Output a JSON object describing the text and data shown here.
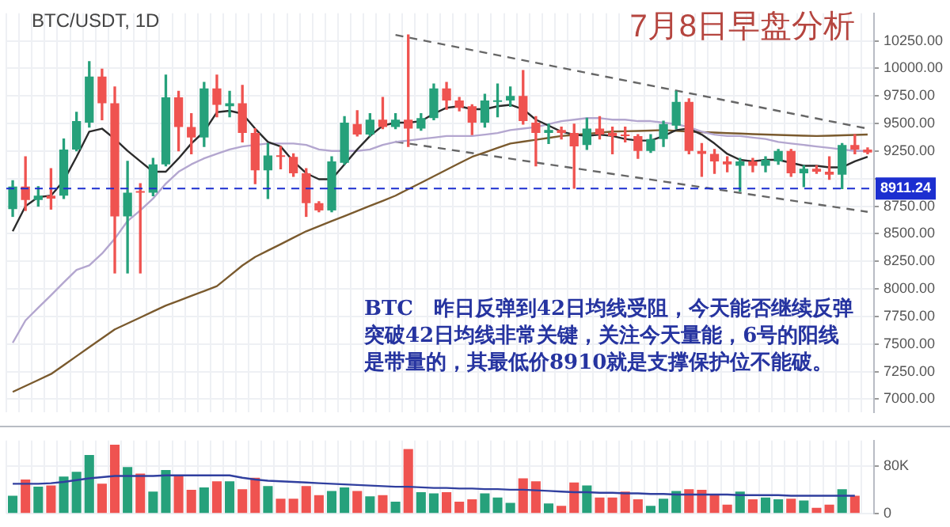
{
  "chart_data": [
    {
      "type": "candlestick",
      "title": "BTC/USDT, 1D",
      "annotations": [
        "7月8日早盘分析",
        "BTC　昨日反弹到42日均线受阻，今天能否继续反弹",
        "突破42日均线非常关键，关注今天量能，6号的阳线",
        "是带量的，其最低价8910就是支撑保护位不能破。"
      ],
      "categories": [
        null,
        null,
        null,
        null,
        null,
        null,
        null,
        null,
        null,
        null,
        null,
        null,
        null,
        null,
        null,
        null,
        null,
        null,
        null,
        null,
        null,
        null,
        null,
        null,
        null,
        null,
        null,
        null,
        null,
        null,
        null,
        null,
        null,
        null,
        null,
        null,
        null,
        null,
        null,
        null,
        null,
        null,
        null,
        null,
        null,
        null,
        null,
        null,
        null,
        null,
        null,
        null,
        null,
        null,
        null,
        null,
        null,
        null,
        null,
        null,
        null,
        null,
        null,
        null,
        null,
        null,
        null,
        null
      ],
      "ohlc": [
        [
          8724,
          8982,
          8658,
          8928
        ],
        [
          8928,
          9198,
          8712,
          8806
        ],
        [
          8806,
          8928,
          8751,
          8846
        ],
        [
          8846,
          9090,
          8724,
          8820
        ],
        [
          8846,
          9360,
          8820,
          9265
        ],
        [
          9265,
          9603,
          9252,
          9522
        ],
        [
          9508,
          10061,
          9468,
          9926
        ],
        [
          9926,
          9994,
          9535,
          9684
        ],
        [
          9684,
          9832,
          8145,
          8658
        ],
        [
          8658,
          9157,
          8145,
          8873
        ],
        [
          8886,
          8955,
          8145,
          8873
        ],
        [
          8873,
          9184,
          8846,
          9130
        ],
        [
          9130,
          9940,
          9117,
          9737
        ],
        [
          9737,
          9792,
          9252,
          9468
        ],
        [
          9468,
          9589,
          9225,
          9373
        ],
        [
          9373,
          9873,
          9292,
          9818
        ],
        [
          9818,
          9940,
          9562,
          9670
        ],
        [
          9657,
          9792,
          9562,
          9684
        ],
        [
          9684,
          9846,
          9333,
          9414
        ],
        [
          9414,
          9454,
          8955,
          9076
        ],
        [
          9076,
          9319,
          8820,
          9211
        ],
        [
          9211,
          9292,
          9090,
          9198
        ],
        [
          9198,
          9225,
          9022,
          9049
        ],
        [
          9049,
          9090,
          8658,
          8778
        ],
        [
          8778,
          8792,
          8700,
          8712
        ],
        [
          8712,
          9198,
          8700,
          9157
        ],
        [
          9144,
          9562,
          9130,
          9508
        ],
        [
          9495,
          9616,
          9387,
          9400
        ],
        [
          9400,
          9589,
          9387,
          9535
        ],
        [
          9535,
          9737,
          9454,
          9468
        ],
        [
          9468,
          9589,
          9454,
          9535
        ],
        [
          9535,
          10304,
          9292,
          9454
        ],
        [
          9454,
          9589,
          9440,
          9549
        ],
        [
          9549,
          9859,
          9535,
          9818
        ],
        [
          9818,
          9873,
          9630,
          9710
        ],
        [
          9710,
          9737,
          9616,
          9643
        ],
        [
          9657,
          9670,
          9400,
          9508
        ],
        [
          9508,
          9765,
          9468,
          9710
        ],
        [
          9697,
          9859,
          9562,
          9710
        ],
        [
          9710,
          9832,
          9657,
          9751
        ],
        [
          9751,
          9980,
          9495,
          9522
        ],
        [
          9508,
          9562,
          9117,
          9414
        ],
        [
          9414,
          9495,
          9319,
          9441
        ],
        [
          9441,
          9468,
          9360,
          9414
        ],
        [
          9414,
          9495,
          8914,
          9292
        ],
        [
          9306,
          9549,
          9265,
          9454
        ],
        [
          9454,
          9562,
          9360,
          9400
        ],
        [
          9414,
          9468,
          9225,
          9387
        ],
        [
          9400,
          9468,
          9333,
          9387
        ],
        [
          9387,
          9400,
          9184,
          9252
        ],
        [
          9252,
          9400,
          9238,
          9360
        ],
        [
          9360,
          9522,
          9292,
          9495
        ],
        [
          9481,
          9792,
          9454,
          9697
        ],
        [
          9697,
          9724,
          9225,
          9252
        ],
        [
          9252,
          9319,
          9022,
          9225
        ],
        [
          9225,
          9265,
          9049,
          9157
        ],
        [
          9157,
          9198,
          9063,
          9130
        ],
        [
          9117,
          9184,
          8886,
          9157
        ],
        [
          9157,
          9184,
          9063,
          9117
        ],
        [
          9117,
          9198,
          9063,
          9171
        ],
        [
          9157,
          9265,
          9130,
          9252
        ],
        [
          9252,
          9265,
          9022,
          9049
        ],
        [
          9049,
          9117,
          8928,
          9090
        ],
        [
          9090,
          9117,
          9049,
          9063
        ],
        [
          9063,
          9198,
          8995,
          9036
        ],
        [
          9036,
          9319,
          8910,
          9306
        ],
        [
          9306,
          9400,
          9225,
          9265
        ],
        [
          9265,
          9279,
          9225,
          9238
        ]
      ],
      "colors": [
        "#26a17b",
        "#ef5350",
        "#26a17b",
        "#ef5350",
        "#26a17b",
        "#26a17b",
        "#26a17b",
        "#ef5350",
        "#ef5350",
        "#26a17b",
        "#ef5350",
        "#26a17b",
        "#26a17b",
        "#ef5350",
        "#ef5350",
        "#26a17b",
        "#ef5350",
        "#26a17b",
        "#ef5350",
        "#ef5350",
        "#26a17b",
        "#ef5350",
        "#ef5350",
        "#ef5350",
        "#ef5350",
        "#26a17b",
        "#26a17b",
        "#ef5350",
        "#26a17b",
        "#ef5350",
        "#26a17b",
        "#ef5350",
        "#26a17b",
        "#26a17b",
        "#ef5350",
        "#ef5350",
        "#ef5350",
        "#26a17b",
        "#26a17b",
        "#26a17b",
        "#ef5350",
        "#ef5350",
        "#26a17b",
        "#ef5350",
        "#ef5350",
        "#26a17b",
        "#ef5350",
        "#ef5350",
        "#ef5350",
        "#ef5350",
        "#26a17b",
        "#26a17b",
        "#26a17b",
        "#ef5350",
        "#ef5350",
        "#ef5350",
        "#ef5350",
        "#26a17b",
        "#ef5350",
        "#26a17b",
        "#26a17b",
        "#ef5350",
        "#26a17b",
        "#ef5350",
        "#ef5350",
        "#26a17b",
        "#ef5350",
        "#ef5350"
      ],
      "series": [
        {
          "type": "line",
          "color": "#2b2b2b",
          "values": [
            8523,
            8751,
            8833,
            8846,
            8982,
            9198,
            9427,
            9454,
            9360,
            9252,
            9157,
            9063,
            9063,
            9184,
            9319,
            9427,
            9603,
            9616,
            9589,
            9454,
            9333,
            9292,
            9157,
            9049,
            8995,
            8995,
            9130,
            9265,
            9387,
            9481,
            9508,
            9508,
            9522,
            9589,
            9643,
            9657,
            9630,
            9630,
            9657,
            9670,
            9630,
            9535,
            9481,
            9427,
            9400,
            9387,
            9400,
            9387,
            9360,
            9346,
            9346,
            9387,
            9441,
            9454,
            9400,
            9319,
            9225,
            9171,
            9157,
            9171,
            9171,
            9144,
            9117,
            9117,
            9103,
            9103,
            9157,
            9198
          ]
        },
        {
          "type": "line",
          "color": "#b3a6cf",
          "values": [
            7511,
            7714,
            7830,
            7943,
            8060,
            8172,
            8213,
            8321,
            8456,
            8616,
            8712,
            8820,
            8955,
            9063,
            9130,
            9184,
            9225,
            9265,
            9292,
            9306,
            9319,
            9319,
            9319,
            9306,
            9265,
            9252,
            9252,
            9252,
            9265,
            9306,
            9333,
            9346,
            9360,
            9373,
            9387,
            9387,
            9387,
            9400,
            9414,
            9441,
            9454,
            9468,
            9495,
            9522,
            9535,
            9549,
            9549,
            9535,
            9535,
            9522,
            9522,
            9508,
            9495,
            9468,
            9427,
            9400,
            9387,
            9387,
            9373,
            9360,
            9333,
            9319,
            9306,
            9292,
            9279,
            9265,
            9252,
            9252
          ]
        },
        {
          "type": "line",
          "color": "#7a5a2e",
          "values": [
            7066,
            7120,
            7174,
            7228,
            7309,
            7390,
            7471,
            7552,
            7633,
            7687,
            7741,
            7795,
            7849,
            7893,
            7937,
            7981,
            8025,
            8119,
            8213,
            8290,
            8348,
            8406,
            8465,
            8523,
            8569,
            8615,
            8661,
            8707,
            8753,
            8799,
            8846,
            8905,
            8963,
            9022,
            9081,
            9140,
            9198,
            9238,
            9279,
            9319,
            9336,
            9353,
            9370,
            9387,
            9397,
            9407,
            9417,
            9427,
            9430,
            9433,
            9436,
            9441,
            9434,
            9427,
            9422,
            9418,
            9413,
            9409,
            9404,
            9400,
            9397,
            9393,
            9390,
            9387,
            9390,
            9393,
            9397,
            9400
          ]
        },
        {
          "type": "line",
          "color": "#666666",
          "line_style": "dashed",
          "values": [
            null,
            null,
            null,
            null,
            null,
            null,
            null,
            null,
            null,
            null,
            null,
            null,
            null,
            null,
            null,
            null,
            null,
            null,
            null,
            null,
            null,
            null,
            null,
            null,
            null,
            null,
            null,
            null,
            null,
            null,
            10304,
            null,
            null,
            null,
            null,
            null,
            null,
            null,
            null,
            null,
            null,
            null,
            null,
            null,
            null,
            null,
            null,
            null,
            null,
            null,
            null,
            null,
            null,
            null,
            null,
            null,
            null,
            null,
            null,
            null,
            null,
            null,
            null,
            null,
            null,
            null,
            null,
            9454
          ]
        },
        {
          "type": "line",
          "color": "#666666",
          "line_style": "dashed",
          "values": [
            null,
            null,
            null,
            null,
            null,
            null,
            null,
            null,
            null,
            null,
            null,
            null,
            null,
            null,
            null,
            null,
            null,
            null,
            null,
            null,
            null,
            null,
            null,
            null,
            null,
            null,
            null,
            null,
            null,
            null,
            9336,
            null,
            null,
            null,
            null,
            null,
            null,
            null,
            null,
            null,
            null,
            null,
            null,
            null,
            null,
            null,
            null,
            null,
            null,
            null,
            null,
            null,
            null,
            null,
            null,
            null,
            null,
            null,
            null,
            null,
            null,
            null,
            null,
            null,
            null,
            null,
            null,
            8699
          ]
        }
      ],
      "ylim": [
        6880,
        10500
      ],
      "yticks": [
        {
          "value": 7000,
          "label": "7000.00"
        },
        {
          "value": 7250,
          "label": "7250.00"
        },
        {
          "value": 7500,
          "label": "7500.00"
        },
        {
          "value": 7750,
          "label": "7750.00"
        },
        {
          "value": 8000,
          "label": "8000.00"
        },
        {
          "value": 8250,
          "label": "8250.00"
        },
        {
          "value": 8500,
          "label": "8500.00"
        },
        {
          "value": 8750,
          "label": "8750.00"
        },
        {
          "value": 9000,
          "label": null
        },
        {
          "value": 9250,
          "label": "9250.00"
        },
        {
          "value": 9500,
          "label": "9500.00"
        },
        {
          "value": 9750,
          "label": "9750.00"
        },
        {
          "value": 10000,
          "label": "10000.00"
        },
        {
          "value": 10250,
          "label": "10250.00"
        }
      ],
      "ref_lines": [
        {
          "axis": "y",
          "value": 8911.24,
          "label": "8911.24",
          "color": "#1c2fd0",
          "line_style": "dashed"
        }
      ],
      "grid": true,
      "legend": false,
      "marker": "none",
      "tick_labels": "y"
    },
    {
      "type": "bar",
      "categories": [
        null,
        null,
        null,
        null,
        null,
        null,
        null,
        null,
        null,
        null,
        null,
        null,
        null,
        null,
        null,
        null,
        null,
        null,
        null,
        null,
        null,
        null,
        null,
        null,
        null,
        null,
        null,
        null,
        null,
        null,
        null,
        null,
        null,
        null,
        null,
        null,
        null,
        null,
        null,
        null,
        null,
        null,
        null,
        null,
        null,
        null,
        null,
        null,
        null,
        null,
        null,
        null,
        null,
        null,
        null,
        null,
        null,
        null,
        null,
        null,
        null,
        null,
        null,
        null,
        null,
        null,
        null,
        null
      ],
      "series": [
        {
          "type": "bar",
          "values": [
            30000,
            57000,
            45000,
            47000,
            62000,
            70000,
            98000,
            50000,
            115000,
            78000,
            67000,
            37000,
            73000,
            65000,
            40000,
            44000,
            54000,
            54000,
            41000,
            60000,
            46000,
            25000,
            25000,
            46000,
            31000,
            38000,
            44000,
            38000,
            29000,
            31000,
            20000,
            108000,
            36000,
            34000,
            36000,
            20000,
            24000,
            34000,
            27000,
            18000,
            59000,
            54000,
            17000,
            13000,
            52000,
            47000,
            27000,
            27000,
            37000,
            24000,
            13000,
            25000,
            38000,
            41000,
            40000,
            32000,
            15000,
            37000,
            24000,
            27000,
            24000,
            25000,
            22000,
            10000,
            15000,
            41000,
            30000,
            null
          ],
          "colors": [
            "#26a17b",
            "#ef5350",
            "#26a17b",
            "#ef5350",
            "#26a17b",
            "#26a17b",
            "#26a17b",
            "#ef5350",
            "#ef5350",
            "#26a17b",
            "#ef5350",
            "#26a17b",
            "#26a17b",
            "#ef5350",
            "#ef5350",
            "#26a17b",
            "#ef5350",
            "#26a17b",
            "#ef5350",
            "#ef5350",
            "#26a17b",
            "#ef5350",
            "#ef5350",
            "#ef5350",
            "#ef5350",
            "#26a17b",
            "#26a17b",
            "#ef5350",
            "#26a17b",
            "#ef5350",
            "#26a17b",
            "#ef5350",
            "#26a17b",
            "#26a17b",
            "#ef5350",
            "#ef5350",
            "#ef5350",
            "#26a17b",
            "#26a17b",
            "#26a17b",
            "#ef5350",
            "#ef5350",
            "#26a17b",
            "#ef5350",
            "#ef5350",
            "#26a17b",
            "#ef5350",
            "#ef5350",
            "#ef5350",
            "#ef5350",
            "#26a17b",
            "#26a17b",
            "#26a17b",
            "#ef5350",
            "#ef5350",
            "#ef5350",
            "#ef5350",
            "#26a17b",
            "#ef5350",
            "#26a17b",
            "#26a17b",
            "#ef5350",
            "#26a17b",
            "#ef5350",
            "#ef5350",
            "#26a17b",
            "#ef5350",
            "#ef5350"
          ]
        },
        {
          "type": "line",
          "color": "#303f9f",
          "values": [
            50000,
            50000,
            50000,
            51000,
            53000,
            56000,
            59000,
            61000,
            63000,
            63000,
            63000,
            63000,
            64000,
            64000,
            64000,
            64000,
            64000,
            64000,
            60000,
            57000,
            55000,
            54000,
            53000,
            52000,
            51000,
            50000,
            49000,
            48000,
            47000,
            46000,
            45000,
            45000,
            44000,
            43000,
            43000,
            42000,
            42000,
            41000,
            41000,
            40000,
            40000,
            39000,
            38000,
            37000,
            36000,
            36000,
            35000,
            35000,
            34000,
            34000,
            33000,
            33000,
            32000,
            32000,
            32000,
            32000,
            32000,
            31000,
            31000,
            31000,
            31000,
            30000,
            30000,
            30000,
            30000,
            30000,
            30000,
            null
          ]
        }
      ],
      "ylim": [
        0,
        122000
      ],
      "yticks": [
        {
          "value": 0,
          "label": "0"
        },
        {
          "value": 80000,
          "label": "80K"
        }
      ],
      "grid": true,
      "legend": false,
      "marker": "none",
      "tick_labels": "y"
    }
  ]
}
